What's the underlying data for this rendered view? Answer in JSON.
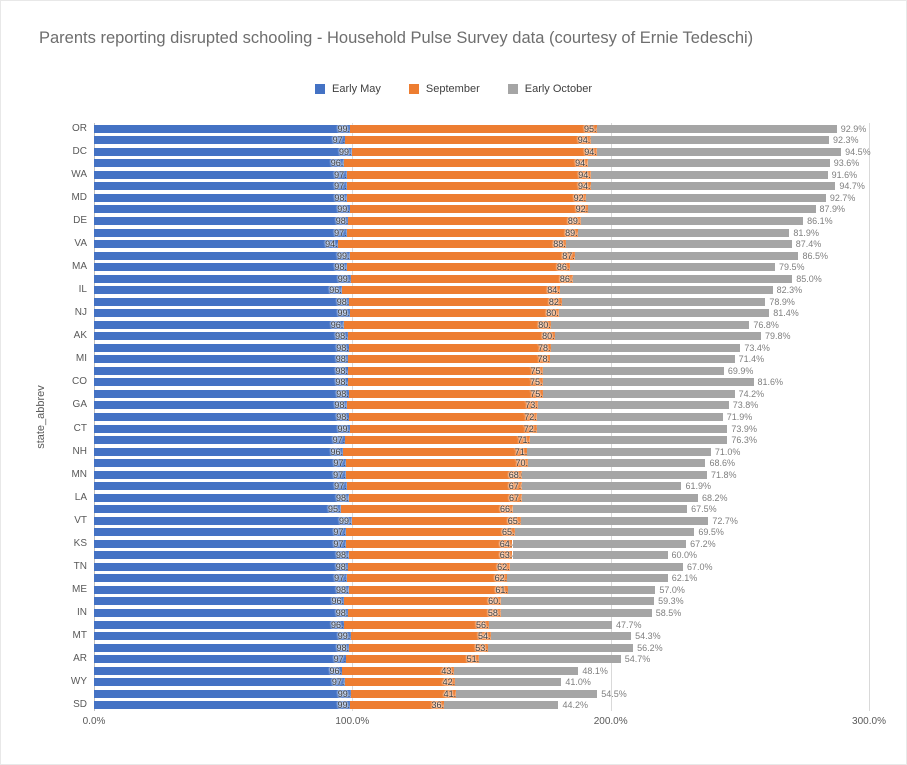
{
  "chart_data": {
    "type": "bar",
    "orientation": "horizontal",
    "stacked": true,
    "title": "Parents reporting disrupted schooling - Household Pulse Survey data (courtesy of Ernie Tedeschi)",
    "xlabel": "",
    "ylabel": "state_abbrev",
    "xlim": [
      0,
      300
    ],
    "x_tick_values": [
      0,
      100,
      200,
      300
    ],
    "x_tick_labels": [
      "0.0%",
      "100.0%",
      "200.0%",
      "300.0%"
    ],
    "grid": true,
    "legend_position": "top-center",
    "value_suffix": "%",
    "series": [
      {
        "name": "Early May",
        "color": "#4472C4"
      },
      {
        "name": "September",
        "color": "#ED7D31"
      },
      {
        "name": "Early October",
        "color": "#A5A5A5"
      }
    ],
    "columns": [
      "state_abbrev",
      "early_may_pct",
      "september_pct",
      "early_october_pct"
    ],
    "rows": [
      [
        "OR",
        99.2,
        95.4,
        92.9
      ],
      [
        "",
        97.3,
        94.9,
        92.3
      ],
      [
        "DC",
        99.8,
        94.9,
        94.5
      ],
      [
        "",
        96.6,
        94.6,
        93.6
      ],
      [
        "WA",
        97.9,
        94.5,
        91.6
      ],
      [
        "",
        97.9,
        94.4,
        94.7
      ],
      [
        "MD",
        98.0,
        92.6,
        92.7
      ],
      [
        "",
        99.1,
        92.3,
        87.9
      ],
      [
        "DE",
        98.5,
        89.9,
        86.1
      ],
      [
        "",
        97.9,
        89.4,
        81.9
      ],
      [
        "VA",
        94.4,
        88.3,
        87.4
      ],
      [
        "",
        99.0,
        87.2,
        86.5
      ],
      [
        "MA",
        98.0,
        86.1,
        79.5
      ],
      [
        "",
        99.3,
        86.0,
        85.0
      ],
      [
        "IL",
        96.0,
        84.4,
        82.3
      ],
      [
        "",
        98.9,
        82.1,
        78.9
      ],
      [
        "NJ",
        99.2,
        80.8,
        81.4
      ],
      [
        "",
        96.6,
        80.3,
        76.8
      ],
      [
        "AK",
        98.3,
        80.1,
        79.8
      ],
      [
        "",
        98.7,
        78.1,
        73.4
      ],
      [
        "MI",
        98.5,
        78.1,
        71.4
      ],
      [
        "",
        98.4,
        75.5,
        69.9
      ],
      [
        "CO",
        98.4,
        75.3,
        81.6
      ],
      [
        "",
        98.7,
        75.1,
        74.2
      ],
      [
        "GA",
        98.0,
        73.9,
        73.8
      ],
      [
        "",
        98.7,
        72.8,
        71.9
      ],
      [
        "CT",
        99.2,
        72.1,
        73.9
      ],
      [
        "",
        97.3,
        71.6,
        76.3
      ],
      [
        "NH",
        96.5,
        71.3,
        71.0
      ],
      [
        "",
        97.6,
        70.5,
        68.6
      ],
      [
        "MN",
        97.5,
        68.0,
        71.8
      ],
      [
        "",
        97.9,
        67.6,
        61.9
      ],
      [
        "LA",
        98.6,
        67.0,
        68.2
      ],
      [
        "",
        95.5,
        66.6,
        67.5
      ],
      [
        "VT",
        99.8,
        65.3,
        72.7
      ],
      [
        "",
        97.6,
        65.3,
        69.5
      ],
      [
        "KS",
        97.6,
        64.4,
        67.2
      ],
      [
        "",
        98.6,
        63.4,
        60.0
      ],
      [
        "TN",
        98.5,
        62.5,
        67.0
      ],
      [
        "",
        97.9,
        62.1,
        62.1
      ],
      [
        "ME",
        98.6,
        61.7,
        57.0
      ],
      [
        "",
        96.9,
        60.6,
        59.3
      ],
      [
        "IN",
        98.5,
        58.9,
        58.5
      ],
      [
        "",
        96.7,
        56.1,
        47.7
      ],
      [
        "MT",
        99.3,
        54.3,
        54.3
      ],
      [
        "",
        98.8,
        53.7,
        56.2
      ],
      [
        "AR",
        97.7,
        51.5,
        54.7
      ],
      [
        "",
        96.1,
        43.3,
        48.1
      ],
      [
        "WY",
        97.0,
        42.9,
        41.0
      ],
      [
        "",
        99.3,
        41.0,
        54.5
      ],
      [
        "SD",
        99.2,
        36.4,
        44.2
      ]
    ]
  }
}
